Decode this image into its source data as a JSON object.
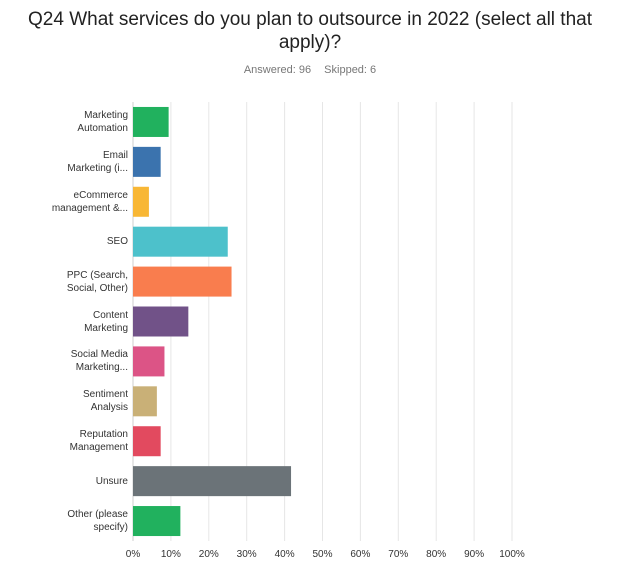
{
  "header": {
    "question": "Q24 What services do you plan to outsource in 2022 (select all that apply)?",
    "answered": "Answered: 96",
    "skipped": "Skipped: 6"
  },
  "chart_data": {
    "type": "bar",
    "orientation": "horizontal",
    "title": "Q24 What services do you plan to outsource in 2022 (select all that apply)?",
    "categories": [
      [
        "Marketing",
        "Automation"
      ],
      [
        "Email",
        "Marketing (i..."
      ],
      [
        "eCommerce",
        "management &..."
      ],
      [
        "SEO"
      ],
      [
        "PPC (Search,",
        "Social, Other)"
      ],
      [
        "Content",
        "Marketing"
      ],
      [
        "Social Media",
        "Marketing..."
      ],
      [
        "Sentiment",
        "Analysis"
      ],
      [
        "Reputation",
        "Management"
      ],
      [
        "Unsure"
      ],
      [
        "Other (please",
        "specify)"
      ]
    ],
    "values": [
      9.4,
      7.3,
      4.2,
      25.0,
      26.0,
      14.6,
      8.3,
      6.3,
      7.3,
      41.7,
      12.5
    ],
    "colors": [
      "#21b15e",
      "#3b73ae",
      "#f8b735",
      "#4dc1cb",
      "#f97d4e",
      "#715288",
      "#dc5486",
      "#c9b077",
      "#e24a5f",
      "#6b7378",
      "#21b15e"
    ],
    "xlim": [
      0,
      100
    ],
    "xticks": [
      "0%",
      "10%",
      "20%",
      "30%",
      "40%",
      "50%",
      "60%",
      "70%",
      "80%",
      "90%",
      "100%"
    ],
    "grid": true
  }
}
